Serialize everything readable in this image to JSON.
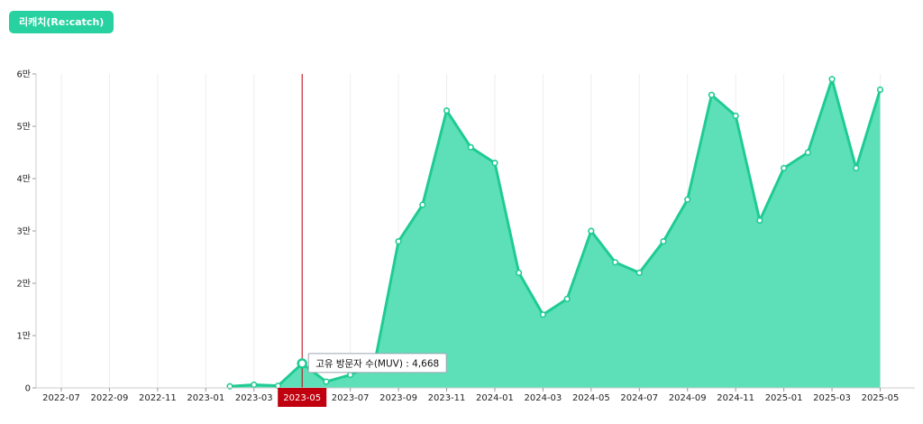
{
  "button": {
    "label": "리캐치(Re:catch)"
  },
  "colors": {
    "accent": "#27d1a0",
    "area": "#5de0b8",
    "line": "#1fcb93",
    "cursor": "#c0000e"
  },
  "chart_data": {
    "type": "area",
    "title": "",
    "xlabel": "",
    "ylabel": "",
    "ylim": [
      0,
      60000
    ],
    "y_ticks": [
      {
        "value": 0,
        "label": "0"
      },
      {
        "value": 10000,
        "label": "1만"
      },
      {
        "value": 20000,
        "label": "2만"
      },
      {
        "value": 30000,
        "label": "3만"
      },
      {
        "value": 40000,
        "label": "4만"
      },
      {
        "value": 50000,
        "label": "5만"
      },
      {
        "value": 60000,
        "label": "6만"
      }
    ],
    "x": [
      "2022-07",
      "2022-08",
      "2022-09",
      "2022-10",
      "2022-11",
      "2022-12",
      "2023-01",
      "2023-02",
      "2023-03",
      "2023-04",
      "2023-05",
      "2023-06",
      "2023-07",
      "2023-08",
      "2023-09",
      "2023-10",
      "2023-11",
      "2023-12",
      "2024-01",
      "2024-02",
      "2024-03",
      "2024-04",
      "2024-05",
      "2024-06",
      "2024-07",
      "2024-08",
      "2024-09",
      "2024-10",
      "2024-11",
      "2024-12",
      "2025-01",
      "2025-02",
      "2025-03",
      "2025-04",
      "2025-05"
    ],
    "x_tick_labels": [
      "2022-07",
      "2022-09",
      "2022-11",
      "2023-01",
      "2023-03",
      "2023-05",
      "2023-07",
      "2023-09",
      "2023-11",
      "2024-01",
      "2024-03",
      "2024-05",
      "2024-07",
      "2024-09",
      "2024-11",
      "2025-01",
      "2025-03",
      "2025-05"
    ],
    "series": [
      {
        "values": [
          null,
          null,
          null,
          null,
          null,
          null,
          null,
          300,
          600,
          400,
          4668,
          1200,
          2500,
          4500,
          28000,
          35000,
          53000,
          46000,
          43000,
          22000,
          14000,
          17000,
          30000,
          24000,
          22000,
          28000,
          36000,
          56000,
          52000,
          32000,
          42000,
          45000,
          59000,
          42000,
          57000
        ]
      }
    ],
    "grid": true,
    "tooltip": {
      "x": "2023-05",
      "label": "고유 방문자 수(MUV) : 4,668"
    }
  }
}
